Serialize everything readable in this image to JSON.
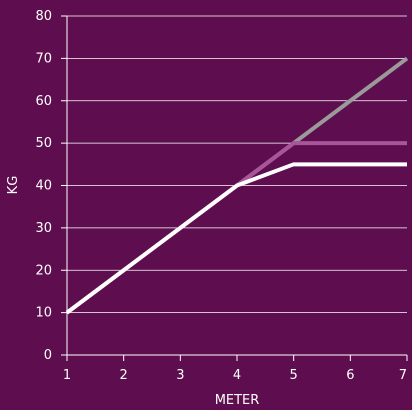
{
  "chart_data": {
    "type": "line",
    "title": "",
    "xlabel": "METER",
    "ylabel": "KG",
    "x": [
      1,
      2,
      3,
      4,
      5,
      6,
      7
    ],
    "xlim": [
      1,
      7
    ],
    "ylim": [
      0,
      80
    ],
    "yticks": [
      0,
      10,
      20,
      30,
      40,
      50,
      60,
      70,
      80
    ],
    "xticks": [
      1,
      2,
      3,
      4,
      5,
      6,
      7
    ],
    "grid": "horizontal",
    "legend": "none",
    "series": [
      {
        "color": "#9a9a9a",
        "values": [
          10,
          20,
          30,
          40,
          50,
          60,
          70
        ]
      },
      {
        "color": "#a8559a",
        "values": [
          10,
          20,
          30,
          40,
          50,
          50,
          50
        ]
      },
      {
        "color": "#ffffff",
        "values": [
          10,
          20,
          30,
          40,
          45,
          45,
          45
        ]
      }
    ],
    "colors": {
      "background": "#5e0d4f",
      "axis": "#ffffff",
      "grid": "#ffffff"
    }
  }
}
